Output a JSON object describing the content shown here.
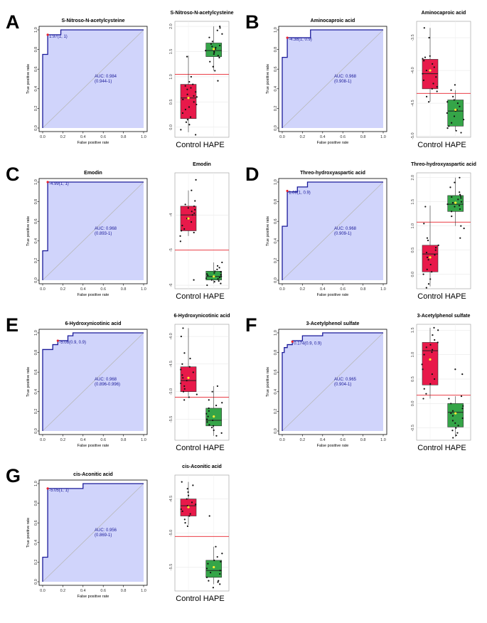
{
  "colors": {
    "roc_fill": "#d0d4fb",
    "roc_line": "#1a1a99",
    "diag": "#b8b8b8",
    "control": "#e8194a",
    "hape": "#35a548",
    "cutoff": "#e8222d",
    "mean": "#ffee33",
    "point": "#111111"
  },
  "labels": {
    "roc_xlabel": "False positive rate",
    "roc_ylabel": "True positive rate",
    "roc_ticks": [
      "0.0",
      "0.2",
      "0.4",
      "0.6",
      "0.8",
      "1.0"
    ],
    "groups": [
      "Control",
      "HAPE"
    ]
  },
  "chart_data": [
    {
      "panel": "A",
      "type": "roc+box",
      "title": "S-Nitroso-N-acetylcysteine",
      "roc": {
        "points": [
          [
            0,
            0
          ],
          [
            0,
            0.75
          ],
          [
            0.05,
            0.75
          ],
          [
            0.05,
            0.95
          ],
          [
            0.1,
            0.95
          ],
          [
            0.1,
            0.95
          ],
          [
            0.18,
            0.95
          ],
          [
            0.18,
            1
          ],
          [
            1,
            1
          ]
        ],
        "threshold_point": [
          0.05,
          0.95
        ],
        "threshold_label": "1.97(1, 1)",
        "auc": "AUC: 0.984",
        "ci": "(0.944-1)"
      },
      "box": {
        "ylim": [
          -0.2,
          2.1
        ],
        "ticks": [
          0.0,
          0.5,
          1.0,
          1.5,
          2.0
        ],
        "tick_labels": [
          "0.0",
          "0.5",
          "1.0",
          "1.5",
          "2.0"
        ],
        "cutoff": 1.05,
        "control": {
          "min": -0.1,
          "q1": 0.17,
          "median": 0.58,
          "q3": 0.85,
          "max": 1.42,
          "mean": 0.58,
          "points": [
            -0.15,
            -0.05,
            0.05,
            0.1,
            0.15,
            0.2,
            0.28,
            0.35,
            0.4,
            0.45,
            0.5,
            0.55,
            0.6,
            0.62,
            0.65,
            0.7,
            0.75,
            0.78,
            0.82,
            0.85,
            0.9,
            1.0,
            1.4
          ]
        },
        "hape": {
          "min": 1.12,
          "q1": 1.4,
          "median": 1.52,
          "q3": 1.67,
          "max": 2.0,
          "mean": 1.55,
          "points": [
            0.92,
            1.12,
            1.2,
            1.3,
            1.38,
            1.42,
            1.45,
            1.48,
            1.5,
            1.52,
            1.55,
            1.58,
            1.6,
            1.62,
            1.65,
            1.7,
            1.78,
            1.85,
            1.92,
            1.97,
            2.0
          ]
        }
      }
    },
    {
      "panel": "B",
      "type": "roc+box",
      "title": "Aminocaproic acid",
      "roc": {
        "points": [
          [
            0,
            0
          ],
          [
            0,
            0.72
          ],
          [
            0.05,
            0.72
          ],
          [
            0.05,
            0.92
          ],
          [
            0.28,
            0.92
          ],
          [
            0.28,
            1
          ],
          [
            1,
            1
          ]
        ],
        "threshold_point": [
          0.05,
          0.92
        ],
        "threshold_label": "-4.38(1, 0.9)",
        "auc": "AUC: 0.968",
        "ci": "(0.908-1)"
      },
      "box": {
        "ylim": [
          -5.02,
          -3.25
        ],
        "ticks": [
          -5.0,
          -4.5,
          -4.0,
          -3.5
        ],
        "tick_labels": [
          "-5.0",
          "-4.5",
          "-4.0",
          "-3.5"
        ],
        "cutoff": -4.35,
        "control": {
          "min": -4.48,
          "q1": -4.28,
          "median": -4.05,
          "q3": -3.83,
          "max": -3.35,
          "mean": -4.0,
          "points": [
            -4.48,
            -4.4,
            -4.32,
            -4.28,
            -4.25,
            -4.2,
            -4.15,
            -4.1,
            -4.05,
            -4.0,
            -3.95,
            -3.9,
            -3.85,
            -3.82,
            -3.8,
            -3.78,
            -3.5,
            -3.35
          ]
        },
        "hape": {
          "min": -4.92,
          "q1": -4.85,
          "median": -4.62,
          "q3": -4.45,
          "max": -4.3,
          "mean": -4.6,
          "points": [
            -4.95,
            -4.92,
            -4.88,
            -4.85,
            -4.8,
            -4.75,
            -4.7,
            -4.65,
            -4.62,
            -4.6,
            -4.55,
            -4.5,
            -4.48,
            -4.45,
            -4.4,
            -4.3,
            -4.22
          ]
        }
      }
    },
    {
      "panel": "C",
      "type": "roc+box",
      "title": "Emodin",
      "roc": {
        "points": [
          [
            0,
            0
          ],
          [
            0,
            0.3
          ],
          [
            0.05,
            0.3
          ],
          [
            0.05,
            1
          ],
          [
            1,
            1
          ]
        ],
        "threshold_point": [
          0.05,
          1.0
        ],
        "threshold_label": "-4.99(1, 1)",
        "auc": "AUC: 0.968",
        "ci": "(0.893-1)"
      },
      "box": {
        "ylim": [
          -6.1,
          -2.8
        ],
        "ticks": [
          -6,
          -5,
          -4
        ],
        "tick_labels": [
          "-6",
          "-5",
          "-4"
        ],
        "cutoff": -5.0,
        "control": {
          "min": -4.6,
          "q1": -4.45,
          "median": -4.0,
          "q3": -3.75,
          "max": -3.3,
          "mean": -4.1,
          "points": [
            -5.85,
            -4.75,
            -4.6,
            -4.5,
            -4.45,
            -4.4,
            -4.3,
            -4.2,
            -4.1,
            -4.0,
            -3.95,
            -3.9,
            -3.85,
            -3.8,
            -3.75,
            -3.7,
            -3.6,
            -3.3,
            -3.0
          ]
        },
        "hape": {
          "min": -5.95,
          "q1": -5.85,
          "median": -5.75,
          "q3": -5.6,
          "max": -5.35,
          "mean": -5.75,
          "points": [
            -6.0,
            -5.95,
            -5.9,
            -5.88,
            -5.85,
            -5.82,
            -5.8,
            -5.78,
            -5.75,
            -5.72,
            -5.7,
            -5.68,
            -5.65,
            -5.62,
            -5.6,
            -5.55,
            -5.5,
            -5.45,
            -5.35
          ]
        }
      }
    },
    {
      "panel": "D",
      "type": "roc+box",
      "title": "Threo-hydroxyaspartic acid",
      "roc": {
        "points": [
          [
            0,
            0
          ],
          [
            0,
            0.55
          ],
          [
            0.05,
            0.55
          ],
          [
            0.05,
            0.9
          ],
          [
            0.15,
            0.9
          ],
          [
            0.15,
            0.95
          ],
          [
            0.25,
            0.95
          ],
          [
            0.25,
            1
          ],
          [
            1,
            1
          ]
        ],
        "threshold_point": [
          0.05,
          0.91
        ],
        "threshold_label": "1.09(1, 0.9)",
        "auc": "AUC: 0.968",
        "ci": "(0.909-1)"
      },
      "box": {
        "ylim": [
          -0.3,
          2.1
        ],
        "ticks": [
          0.0,
          0.5,
          1.0,
          1.5,
          2.0
        ],
        "tick_labels": [
          "0.0",
          "0.5",
          "1.0",
          "1.5",
          "2.0"
        ],
        "cutoff": 1.08,
        "control": {
          "min": -0.25,
          "q1": 0.05,
          "median": 0.42,
          "q3": 0.6,
          "max": 1.42,
          "mean": 0.35,
          "points": [
            -0.28,
            -0.2,
            -0.1,
            0.0,
            0.05,
            0.1,
            0.2,
            0.3,
            0.35,
            0.4,
            0.45,
            0.5,
            0.55,
            0.6,
            0.7,
            0.75,
            1.05,
            1.4
          ]
        },
        "hape": {
          "min": 1.0,
          "q1": 1.3,
          "median": 1.45,
          "q3": 1.63,
          "max": 2.0,
          "mean": 1.48,
          "points": [
            0.75,
            0.95,
            1.0,
            1.2,
            1.3,
            1.35,
            1.4,
            1.42,
            1.45,
            1.48,
            1.5,
            1.55,
            1.58,
            1.6,
            1.62,
            1.65,
            1.7,
            1.8,
            1.9,
            2.0
          ]
        }
      }
    },
    {
      "panel": "E",
      "type": "roc+box",
      "title": "6-Hydroxynicotinic acid",
      "roc": {
        "points": [
          [
            0,
            0
          ],
          [
            0,
            0.83
          ],
          [
            0.1,
            0.83
          ],
          [
            0.1,
            0.88
          ],
          [
            0.15,
            0.88
          ],
          [
            0.15,
            0.92
          ],
          [
            0.25,
            0.92
          ],
          [
            0.25,
            0.97
          ],
          [
            0.3,
            0.97
          ],
          [
            0.3,
            1
          ],
          [
            1,
            1
          ]
        ],
        "threshold_point": [
          0.15,
          0.92
        ],
        "threshold_label": "-5.08(0.9, 0.9)",
        "auc": "AUC: 0.968",
        "ci": "(0.896-0.996)"
      },
      "box": {
        "ylim": [
          -5.88,
          -3.78
        ],
        "ticks": [
          -5.5,
          -5.0,
          -4.5,
          -4.0
        ],
        "tick_labels": [
          "-5.5",
          "-5.0",
          "-4.5",
          "-4.0"
        ],
        "cutoff": -5.1,
        "control": {
          "min": -5.08,
          "q1": -5.0,
          "median": -4.8,
          "q3": -4.55,
          "max": -3.85,
          "mean": -4.75,
          "points": [
            -5.15,
            -5.1,
            -5.05,
            -5.0,
            -4.95,
            -4.9,
            -4.85,
            -4.8,
            -4.75,
            -4.7,
            -4.65,
            -4.6,
            -4.55,
            -4.5,
            -4.4,
            -4.3,
            -4.0,
            -3.85
          ]
        },
        "hape": {
          "min": -5.8,
          "q1": -5.62,
          "median": -5.52,
          "q3": -5.3,
          "max": -4.9,
          "mean": -5.45,
          "points": [
            -5.8,
            -5.75,
            -5.7,
            -5.65,
            -5.62,
            -5.6,
            -5.55,
            -5.52,
            -5.5,
            -5.45,
            -5.4,
            -5.35,
            -5.3,
            -5.25,
            -5.2,
            -5.15,
            -5.0,
            -4.9
          ]
        }
      }
    },
    {
      "panel": "F",
      "type": "roc+box",
      "title": "3-Acetylphenol sulfate",
      "roc": {
        "points": [
          [
            0,
            0
          ],
          [
            0,
            0.8
          ],
          [
            0.02,
            0.8
          ],
          [
            0.02,
            0.85
          ],
          [
            0.05,
            0.85
          ],
          [
            0.05,
            0.88
          ],
          [
            0.1,
            0.88
          ],
          [
            0.1,
            0.92
          ],
          [
            0.2,
            0.92
          ],
          [
            0.2,
            0.97
          ],
          [
            0.4,
            0.97
          ],
          [
            0.4,
            1
          ],
          [
            1,
            1
          ]
        ],
        "threshold_point": [
          0.1,
          0.91
        ],
        "threshold_label": "0.174(0.9, 0.9)",
        "auc": "AUC: 0.965",
        "ci": "(0.904-1)"
      },
      "box": {
        "ylim": [
          -0.75,
          1.62
        ],
        "ticks": [
          -0.5,
          0.0,
          0.5,
          1.0,
          1.5
        ],
        "tick_labels": [
          "-0.5",
          "0.0",
          "0.5",
          "1.0",
          "1.5"
        ],
        "cutoff": 0.17,
        "control": {
          "min": 0.1,
          "q1": 0.38,
          "median": 1.08,
          "q3": 1.25,
          "max": 1.55,
          "mean": 0.9,
          "points": [
            0.1,
            0.2,
            0.3,
            0.4,
            0.5,
            0.6,
            0.7,
            0.8,
            0.9,
            1.0,
            1.05,
            1.1,
            1.15,
            1.2,
            1.25,
            1.3,
            1.4,
            1.5,
            1.55
          ]
        },
        "hape": {
          "min": -0.68,
          "q1": -0.48,
          "median": -0.18,
          "q3": 0.0,
          "max": 0.15,
          "mean": -0.2,
          "points": [
            -0.7,
            -0.65,
            -0.6,
            -0.55,
            -0.5,
            -0.45,
            -0.4,
            -0.35,
            -0.3,
            -0.25,
            -0.2,
            -0.15,
            -0.1,
            -0.05,
            0.0,
            0.1,
            0.15,
            0.6,
            0.7
          ]
        }
      }
    },
    {
      "panel": "G",
      "type": "roc+box",
      "title": "cis-Aconitic acid",
      "roc": {
        "points": [
          [
            0,
            0
          ],
          [
            0,
            0.25
          ],
          [
            0.05,
            0.25
          ],
          [
            0.05,
            0.95
          ],
          [
            0.4,
            0.95
          ],
          [
            0.4,
            1
          ],
          [
            1,
            1
          ]
        ],
        "threshold_point": [
          0.05,
          0.95
        ],
        "threshold_label": "-5.05(1, 1)",
        "auc": "AUC: 0.956",
        "ci": "(0.869-1)"
      },
      "box": {
        "ylim": [
          -5.85,
          -4.15
        ],
        "ticks": [
          -5.5,
          -5.0,
          -4.5
        ],
        "tick_labels": [
          "-5.5",
          "-5.0",
          "-4.5"
        ],
        "cutoff": -5.05,
        "control": {
          "min": -4.88,
          "q1": -4.75,
          "median": -4.6,
          "q3": -4.5,
          "max": -4.25,
          "mean": -4.62,
          "points": [
            -4.9,
            -4.85,
            -4.8,
            -4.75,
            -4.72,
            -4.68,
            -4.65,
            -4.6,
            -4.58,
            -4.55,
            -4.5,
            -4.45,
            -4.4,
            -4.35,
            -4.3,
            -4.25
          ]
        },
        "hape": {
          "min": -5.75,
          "q1": -5.65,
          "median": -5.55,
          "q3": -5.4,
          "max": -5.2,
          "mean": -5.5,
          "points": [
            -5.8,
            -5.75,
            -5.72,
            -5.7,
            -5.65,
            -5.6,
            -5.58,
            -5.55,
            -5.52,
            -5.5,
            -5.45,
            -5.42,
            -5.4,
            -5.35,
            -5.3,
            -5.2,
            -4.75,
            -5.7
          ]
        }
      }
    }
  ]
}
